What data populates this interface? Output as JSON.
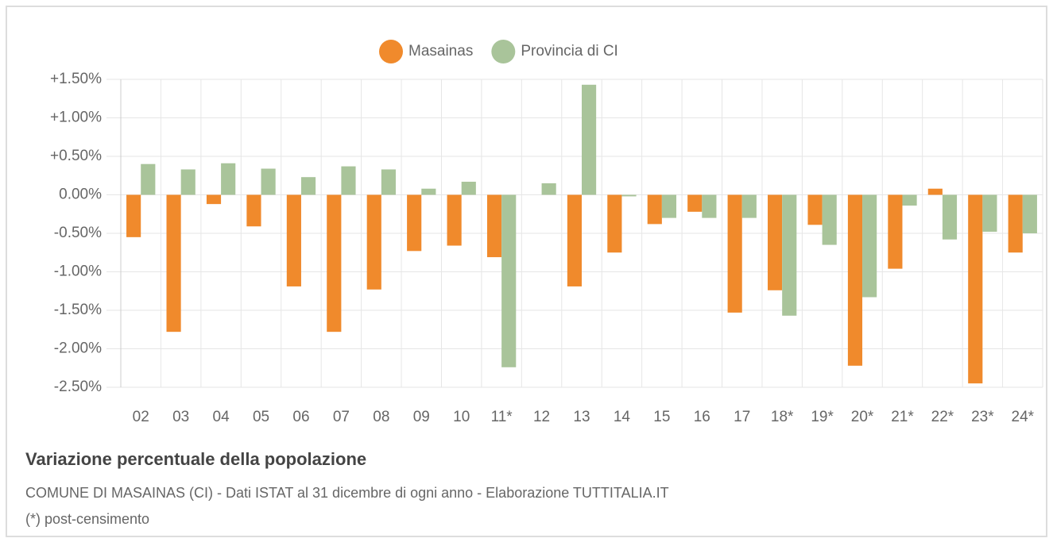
{
  "chart_data": {
    "type": "bar",
    "title": "Variazione percentuale della popolazione",
    "subtitle": "COMUNE DI MASAINAS (CI) - Dati ISTAT al 31 dicembre di ogni anno - Elaborazione TUTTITALIA.IT",
    "note": "(*) post-censimento",
    "categories": [
      "02",
      "03",
      "04",
      "05",
      "06",
      "07",
      "08",
      "09",
      "10",
      "11*",
      "12",
      "13",
      "14",
      "15",
      "16",
      "17",
      "18*",
      "19*",
      "20*",
      "21*",
      "22*",
      "23*",
      "24*"
    ],
    "series": [
      {
        "name": "Masainas",
        "color": "#f08a2c",
        "values": [
          -0.55,
          -1.78,
          -0.12,
          -0.41,
          -1.19,
          -1.78,
          -1.23,
          -0.73,
          -0.66,
          -0.81,
          0,
          -1.19,
          -0.75,
          -0.38,
          -0.22,
          -1.53,
          -1.24,
          -0.39,
          -2.22,
          -0.96,
          0.08,
          -2.45,
          -0.75
        ]
      },
      {
        "name": "Provincia di CI",
        "color": "#a9c49a",
        "values": [
          0.4,
          0.33,
          0.41,
          0.34,
          0.23,
          0.37,
          0.33,
          0.08,
          0.17,
          -2.24,
          0.15,
          1.43,
          -0.02,
          -0.3,
          -0.3,
          -0.3,
          -1.57,
          -0.65,
          -1.33,
          -0.14,
          -0.58,
          -0.48,
          -0.5
        ]
      }
    ],
    "ylim": [
      -2.5,
      1.5
    ],
    "yticks": [
      {
        "value": 1.5,
        "label": "+1.50%"
      },
      {
        "value": 1.0,
        "label": "+1.00%"
      },
      {
        "value": 0.5,
        "label": "+0.50%"
      },
      {
        "value": 0,
        "label": "0.00%"
      },
      {
        "value": -0.5,
        "label": "-0.50%"
      },
      {
        "value": -1.0,
        "label": "-1.00%"
      },
      {
        "value": -1.5,
        "label": "-1.50%"
      },
      {
        "value": -2.0,
        "label": "-2.00%"
      },
      {
        "value": -2.5,
        "label": "-2.50%"
      }
    ],
    "grid": true
  }
}
